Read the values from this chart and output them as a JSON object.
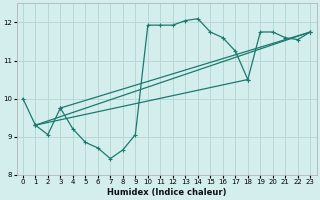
{
  "xlabel": "Humidex (Indice chaleur)",
  "bg_color": "#d4eeed",
  "grid_color": "#b8d8d6",
  "line_color": "#1a7a6e",
  "xlim": [
    -0.5,
    23.5
  ],
  "ylim": [
    8,
    12.5
  ],
  "yticks": [
    8,
    9,
    10,
    11,
    12
  ],
  "xticks": [
    0,
    1,
    2,
    3,
    4,
    5,
    6,
    7,
    8,
    9,
    10,
    11,
    12,
    13,
    14,
    15,
    16,
    17,
    18,
    19,
    20,
    21,
    22,
    23
  ],
  "main_series": {
    "x": [
      0,
      1,
      2,
      3,
      4,
      5,
      6,
      7,
      8,
      9,
      10,
      11,
      12,
      13,
      14,
      15,
      16,
      17,
      18,
      19,
      20,
      21,
      22,
      23
    ],
    "y": [
      10.0,
      9.3,
      9.05,
      9.75,
      9.2,
      8.85,
      8.7,
      8.42,
      8.65,
      9.05,
      11.93,
      11.93,
      11.93,
      12.05,
      12.1,
      11.75,
      11.6,
      11.25,
      10.5,
      11.75,
      11.75,
      11.6,
      11.55,
      11.75
    ]
  },
  "straight_lines": [
    {
      "x": [
        1,
        23
      ],
      "y": [
        9.3,
        11.75
      ]
    },
    {
      "x": [
        1,
        18
      ],
      "y": [
        9.3,
        10.5
      ]
    },
    {
      "x": [
        3,
        23
      ],
      "y": [
        9.75,
        11.75
      ]
    }
  ]
}
